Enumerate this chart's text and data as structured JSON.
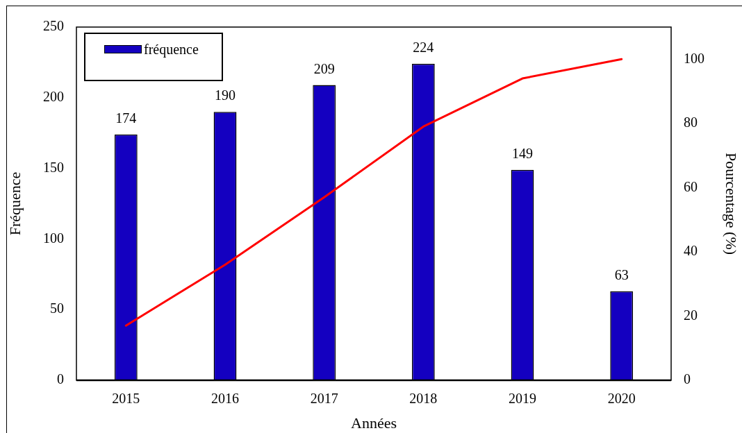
{
  "chart_data": {
    "type": "bar",
    "xlabel": "Années",
    "ylabel": "Fréquence",
    "y2label": "Pourcentage (%)",
    "categories": [
      "2015",
      "2016",
      "2017",
      "2018",
      "2019",
      "2020"
    ],
    "series": [
      {
        "name": "fréquence",
        "color": "#1400c0",
        "values": [
          174,
          190,
          209,
          224,
          149,
          63
        ],
        "value_labels": [
          "174",
          "190",
          "209",
          "224",
          "149",
          "63"
        ]
      },
      {
        "type": "line",
        "axis": "y2",
        "color": "#ff0000",
        "values": [
          17,
          36,
          57,
          79,
          94,
          100
        ]
      }
    ],
    "ylim": [
      0,
      250
    ],
    "yticks": [
      0,
      50,
      100,
      150,
      200,
      250
    ],
    "y2lim": [
      0,
      110
    ],
    "y2ticks": [
      0,
      20,
      40,
      60,
      80,
      100
    ],
    "legend": "top left",
    "grid": false,
    "marker": "none"
  }
}
